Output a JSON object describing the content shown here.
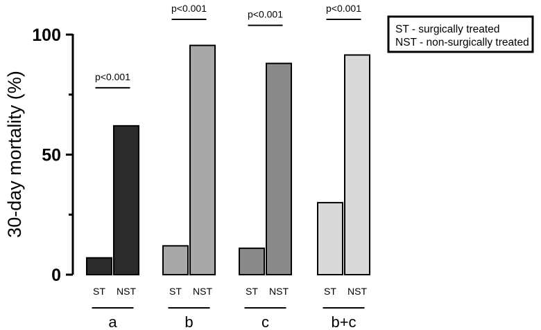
{
  "chart_data": {
    "type": "bar",
    "title": "",
    "xlabel": "",
    "ylabel": "30-day mortality (%)",
    "ylim": [
      0,
      100
    ],
    "yticks": [
      0,
      50,
      100
    ],
    "grid": false,
    "legend_position": "top-right",
    "groups": [
      {
        "label": "a",
        "p_value": "p<0.001",
        "bars": [
          {
            "category": "ST",
            "value": 7,
            "color": "#2b2b2b"
          },
          {
            "category": "NST",
            "value": 62,
            "color": "#2b2b2b"
          }
        ]
      },
      {
        "label": "b",
        "p_value": "p<0.001",
        "bars": [
          {
            "category": "ST",
            "value": 12,
            "color": "#a8a8a8"
          },
          {
            "category": "NST",
            "value": 95.5,
            "color": "#a8a8a8"
          }
        ]
      },
      {
        "label": "c",
        "p_value": "p<0.001",
        "bars": [
          {
            "category": "ST",
            "value": 11,
            "color": "#8a8a8a"
          },
          {
            "category": "NST",
            "value": 88,
            "color": "#8a8a8a"
          }
        ]
      },
      {
        "label": "b+c",
        "p_value": "p<0.001",
        "bars": [
          {
            "category": "ST",
            "value": 30,
            "color": "#d9d9d9"
          },
          {
            "category": "NST",
            "value": 91.5,
            "color": "#d9d9d9"
          }
        ]
      }
    ],
    "legend": [
      "ST - surgically treated",
      "NST - non-surgically treated"
    ]
  }
}
